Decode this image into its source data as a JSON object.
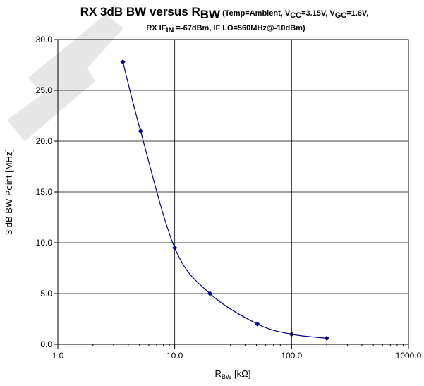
{
  "chart_data": {
    "type": "scatter",
    "title": {
      "main": "RX 3dB BW versus R",
      "main_sub": "BW",
      "cond_a": " (Temp=Ambient, V",
      "cond_a_sub": "CC",
      "cond_b": "=3.15V, V",
      "cond_b_sub": "GC",
      "cond_c": "=1.6V,",
      "line2_a": "RX IF",
      "line2_a_sub": "IN",
      "line2_b": " =-67dBm, IF LO=560MHz@-10dBm)"
    },
    "xlabel": {
      "main": "R",
      "sub": "BW",
      "rest": " [kΩ]"
    },
    "ylabel": "3 dB BW Point [MHz]",
    "x_scale": "log",
    "xlim": [
      1,
      1000
    ],
    "ylim": [
      0,
      30
    ],
    "x_ticks": [
      "1.0",
      "10.0",
      "100.0",
      "1000.0"
    ],
    "y_ticks": [
      "0.0",
      "5.0",
      "10.0",
      "15.0",
      "20.0",
      "25.0",
      "30.0"
    ],
    "grid": true,
    "series": [
      {
        "x": [
          3.6,
          5.1,
          10,
          20,
          51,
          100,
          200
        ],
        "y": [
          27.8,
          21.0,
          9.5,
          5.0,
          2.0,
          1.0,
          0.6
        ],
        "color": "#00008b",
        "marker": "diamond",
        "line": "smooth"
      }
    ]
  },
  "colors": {
    "series": "#00008b",
    "grid": "#000000",
    "watermark": "#d9d9d9"
  }
}
